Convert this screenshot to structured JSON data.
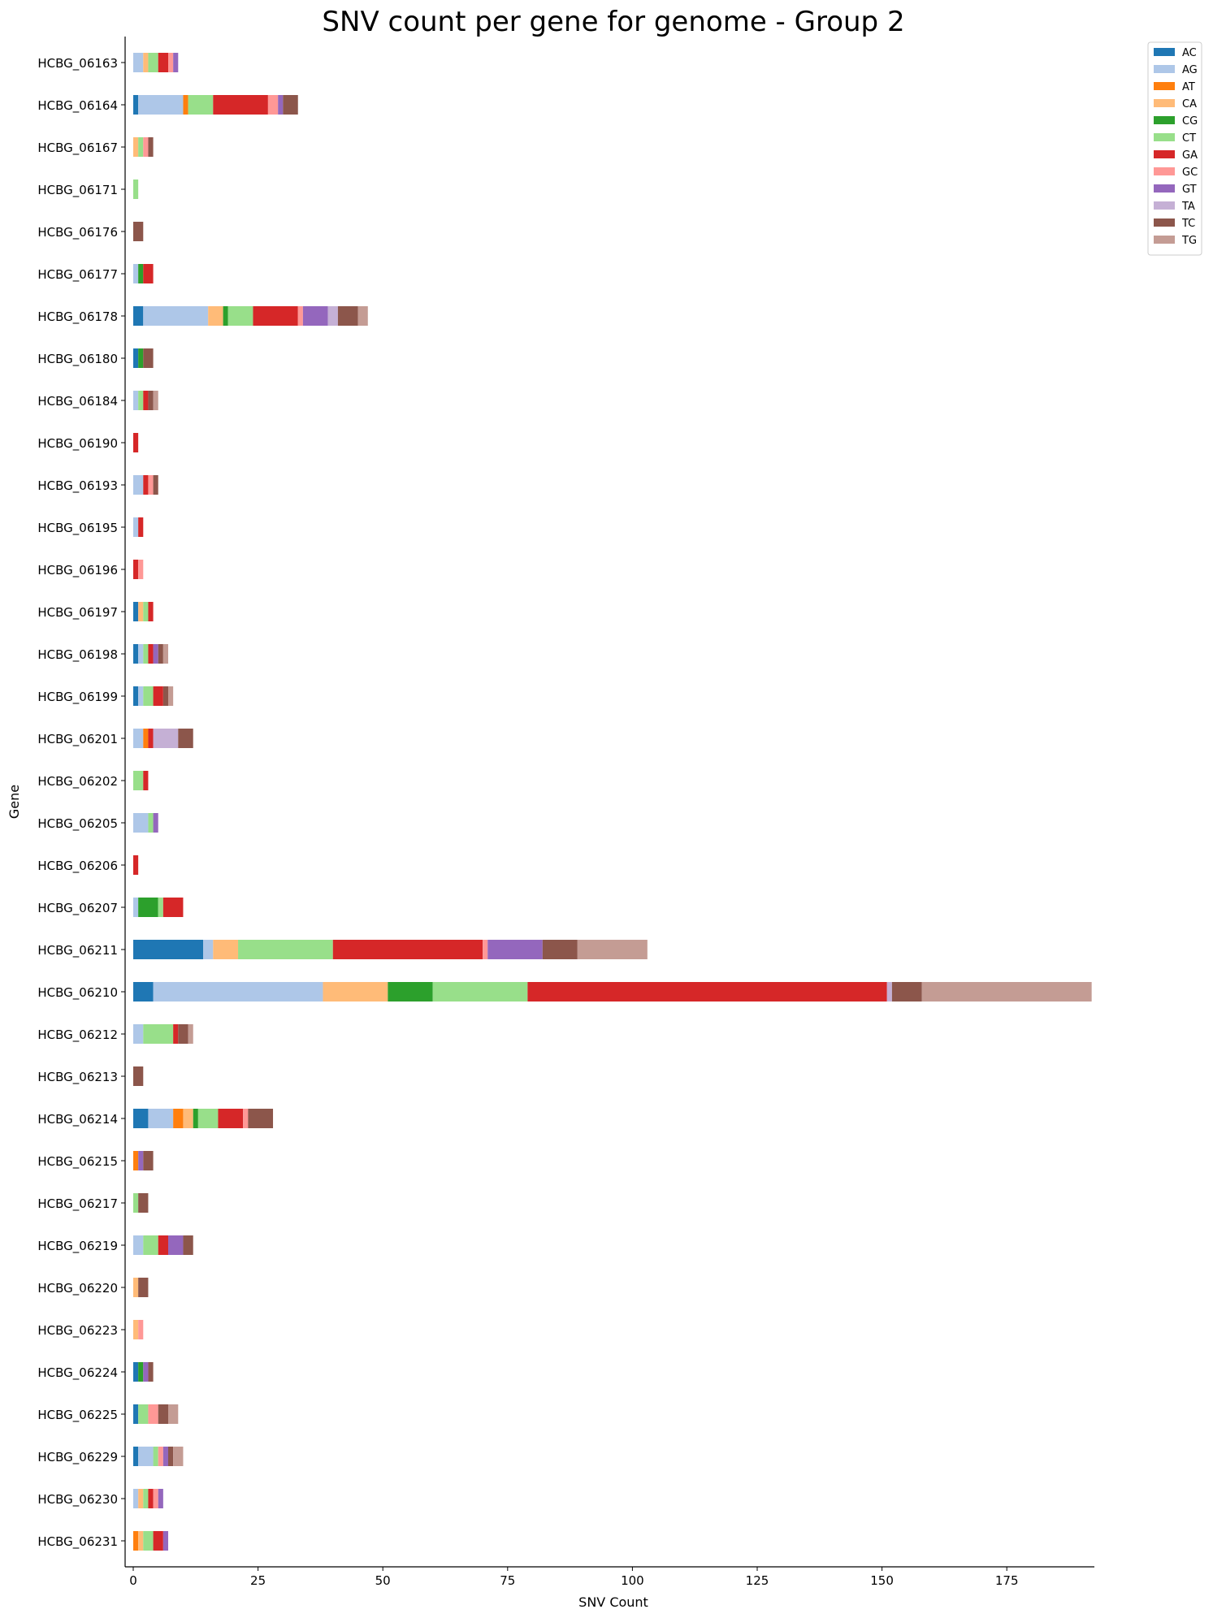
{
  "chart_data": {
    "type": "bar",
    "orientation": "horizontal",
    "stacked": true,
    "title": "SNV count per gene for genome - Group 2",
    "xlabel": "SNV Count",
    "ylabel": "Gene",
    "xlim": [
      -1.5,
      194
    ],
    "xticks": [
      0,
      25,
      50,
      75,
      100,
      125,
      150,
      175
    ],
    "grid": false,
    "legend_position": "top-right outside",
    "categories": [
      "HCBG_06163",
      "HCBG_06164",
      "HCBG_06167",
      "HCBG_06171",
      "HCBG_06176",
      "HCBG_06177",
      "HCBG_06178",
      "HCBG_06180",
      "HCBG_06184",
      "HCBG_06190",
      "HCBG_06193",
      "HCBG_06195",
      "HCBG_06196",
      "HCBG_06197",
      "HCBG_06198",
      "HCBG_06199",
      "HCBG_06201",
      "HCBG_06202",
      "HCBG_06205",
      "HCBG_06206",
      "HCBG_06207",
      "HCBG_06211",
      "HCBG_06210",
      "HCBG_06212",
      "HCBG_06213",
      "HCBG_06214",
      "HCBG_06215",
      "HCBG_06217",
      "HCBG_06219",
      "HCBG_06220",
      "HCBG_06223",
      "HCBG_06224",
      "HCBG_06225",
      "HCBG_06229",
      "HCBG_06230",
      "HCBG_06231"
    ],
    "series": [
      {
        "name": "AC",
        "color": "#1f77b4",
        "values": [
          0,
          1,
          0,
          0,
          0,
          0,
          2,
          1,
          0,
          0,
          0,
          0,
          0,
          1,
          1,
          1,
          0,
          0,
          0,
          0,
          0,
          14,
          4,
          0,
          0,
          3,
          0,
          0,
          0,
          0,
          0,
          1,
          1,
          1,
          0,
          0
        ]
      },
      {
        "name": "AG",
        "color": "#aec7e8",
        "values": [
          2,
          9,
          0,
          0,
          0,
          1,
          13,
          0,
          1,
          0,
          2,
          1,
          0,
          0,
          1,
          1,
          2,
          0,
          3,
          0,
          1,
          2,
          34,
          2,
          0,
          5,
          0,
          0,
          2,
          0,
          0,
          0,
          0,
          3,
          1,
          0
        ]
      },
      {
        "name": "AT",
        "color": "#ff7f0e",
        "values": [
          0,
          1,
          0,
          0,
          0,
          0,
          0,
          0,
          0,
          0,
          0,
          0,
          0,
          0,
          0,
          0,
          1,
          0,
          0,
          0,
          0,
          0,
          0,
          0,
          0,
          2,
          1,
          0,
          0,
          0,
          0,
          0,
          0,
          0,
          0,
          1
        ]
      },
      {
        "name": "CA",
        "color": "#ffbb78",
        "values": [
          1,
          0,
          1,
          0,
          0,
          0,
          3,
          0,
          0,
          0,
          0,
          0,
          0,
          1,
          0,
          0,
          0,
          0,
          0,
          0,
          0,
          5,
          13,
          0,
          0,
          2,
          0,
          0,
          0,
          1,
          1,
          0,
          0,
          0,
          1,
          1
        ]
      },
      {
        "name": "CG",
        "color": "#2ca02c",
        "values": [
          0,
          0,
          0,
          0,
          0,
          1,
          1,
          1,
          0,
          0,
          0,
          0,
          0,
          0,
          0,
          0,
          0,
          0,
          0,
          0,
          4,
          0,
          9,
          0,
          0,
          1,
          0,
          0,
          0,
          0,
          0,
          1,
          0,
          0,
          0,
          0
        ]
      },
      {
        "name": "CT",
        "color": "#98df8a",
        "values": [
          2,
          5,
          1,
          1,
          0,
          0,
          5,
          0,
          1,
          0,
          0,
          0,
          0,
          1,
          1,
          2,
          0,
          2,
          1,
          0,
          1,
          19,
          19,
          6,
          0,
          4,
          0,
          1,
          3,
          0,
          0,
          0,
          2,
          1,
          1,
          2
        ]
      },
      {
        "name": "GA",
        "color": "#d62728",
        "values": [
          2,
          11,
          0,
          0,
          0,
          2,
          9,
          0,
          1,
          1,
          1,
          1,
          1,
          1,
          1,
          2,
          1,
          1,
          0,
          1,
          4,
          30,
          72,
          1,
          0,
          5,
          0,
          0,
          2,
          0,
          0,
          0,
          0,
          0,
          1,
          2
        ]
      },
      {
        "name": "GC",
        "color": "#ff9896",
        "values": [
          1,
          2,
          1,
          0,
          0,
          0,
          1,
          0,
          0,
          0,
          1,
          0,
          1,
          0,
          0,
          0,
          0,
          0,
          0,
          0,
          0,
          1,
          0,
          0,
          0,
          1,
          0,
          0,
          0,
          0,
          1,
          0,
          2,
          1,
          1,
          0
        ]
      },
      {
        "name": "GT",
        "color": "#9467bd",
        "values": [
          1,
          1,
          0,
          0,
          0,
          0,
          5,
          0,
          0,
          0,
          0,
          0,
          0,
          0,
          1,
          0,
          0,
          0,
          1,
          0,
          0,
          11,
          0,
          0,
          0,
          0,
          1,
          0,
          3,
          0,
          0,
          1,
          0,
          1,
          1,
          1
        ]
      },
      {
        "name": "TA",
        "color": "#c5b0d5",
        "values": [
          0,
          0,
          0,
          0,
          0,
          0,
          2,
          0,
          0,
          0,
          0,
          0,
          0,
          0,
          0,
          0,
          5,
          0,
          0,
          0,
          0,
          0,
          1,
          0,
          0,
          0,
          0,
          0,
          0,
          0,
          0,
          0,
          0,
          0,
          0,
          0
        ]
      },
      {
        "name": "TC",
        "color": "#8c564b",
        "values": [
          0,
          3,
          1,
          0,
          2,
          0,
          4,
          2,
          1,
          0,
          1,
          0,
          0,
          0,
          1,
          1,
          3,
          0,
          0,
          0,
          0,
          7,
          6,
          2,
          2,
          5,
          2,
          2,
          2,
          2,
          0,
          1,
          2,
          1,
          0,
          0
        ]
      },
      {
        "name": "TG",
        "color": "#c49c94",
        "values": [
          0,
          0,
          0,
          0,
          0,
          0,
          2,
          0,
          1,
          0,
          0,
          0,
          0,
          0,
          1,
          1,
          0,
          0,
          0,
          0,
          0,
          14,
          34,
          1,
          0,
          0,
          0,
          0,
          0,
          0,
          0,
          0,
          2,
          2,
          0,
          0
        ]
      }
    ]
  }
}
